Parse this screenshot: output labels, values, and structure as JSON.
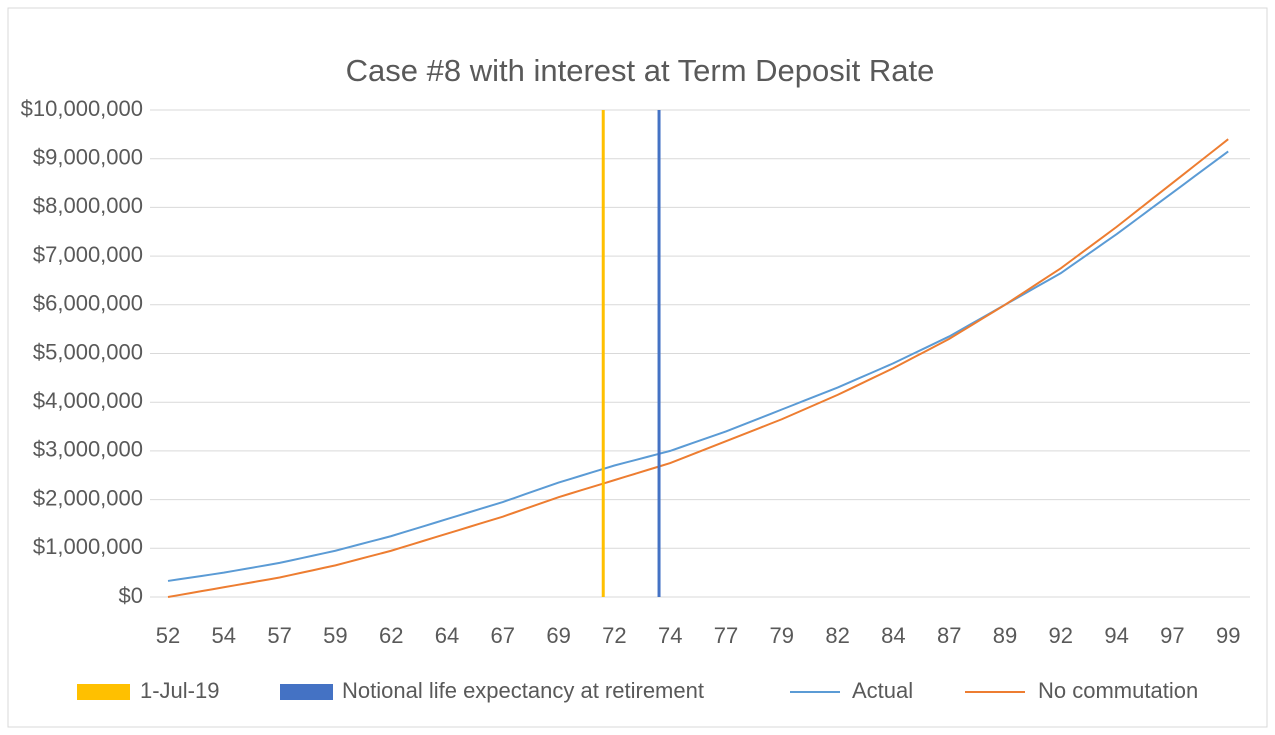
{
  "chart_data": {
    "type": "line",
    "title": "Case #8 with interest at Term Deposit Rate",
    "categories": [
      "52",
      null,
      null,
      null,
      null,
      "54",
      null,
      null,
      null,
      null,
      "57",
      null,
      null,
      null,
      null,
      "59",
      null,
      null,
      null,
      null,
      "62",
      null,
      null,
      null,
      null,
      "64",
      null,
      null,
      null,
      null,
      "67",
      null,
      null,
      null,
      null,
      "69",
      null,
      null,
      null,
      null,
      "72",
      null,
      null,
      null,
      null,
      "74",
      null,
      null,
      null,
      null,
      "77",
      null,
      null,
      null,
      null,
      "79",
      null,
      null,
      null,
      null,
      "82",
      null,
      null,
      null,
      null,
      "84",
      null,
      null,
      null,
      null,
      "87",
      null,
      null,
      null,
      null,
      "89",
      null,
      null,
      null,
      null,
      "92",
      null,
      null,
      null,
      null,
      "94",
      null,
      null,
      null,
      null,
      "97",
      null,
      null,
      null,
      null,
      "99"
    ],
    "series": [
      {
        "name": "Actual",
        "color": "#5b9bd5",
        "values": [
          330000,
          364000,
          398000,
          432000,
          466000,
          500000,
          540000,
          580000,
          620000,
          660000,
          700000,
          750000,
          800000,
          850000,
          900000,
          950000,
          1010000,
          1070000,
          1130000,
          1190000,
          1250000,
          1320000,
          1390000,
          1460000,
          1530000,
          1600000,
          1670000,
          1740000,
          1810000,
          1880000,
          1950000,
          2030000,
          2110000,
          2190000,
          2270000,
          2350000,
          2420000,
          2490000,
          2560000,
          2630000,
          2700000,
          2760000,
          2820000,
          2880000,
          2940000,
          3000000,
          3080000,
          3160000,
          3240000,
          3320000,
          3400000,
          3490000,
          3580000,
          3670000,
          3760000,
          3850000,
          3940000,
          4030000,
          4120000,
          4210000,
          4300000,
          4400000,
          4500000,
          4600000,
          4700000,
          4800000,
          4910000,
          5020000,
          5130000,
          5240000,
          5350000,
          5480000,
          5610000,
          5740000,
          5870000,
          6000000,
          6130000,
          6260000,
          6390000,
          6520000,
          6650000,
          6810000,
          6970000,
          7130000,
          7290000,
          7450000,
          7620000,
          7790000,
          7960000,
          8130000,
          8300000,
          8470000,
          8640000,
          8810000,
          8980000,
          9150000
        ]
      },
      {
        "name": "No commutation",
        "color": "#ed7d31",
        "values": [
          0,
          40000,
          80000,
          120000,
          160000,
          200000,
          240000,
          280000,
          320000,
          360000,
          400000,
          450000,
          500000,
          550000,
          600000,
          650000,
          710000,
          770000,
          830000,
          890000,
          950000,
          1020000,
          1090000,
          1160000,
          1230000,
          1300000,
          1370000,
          1440000,
          1510000,
          1580000,
          1650000,
          1730000,
          1810000,
          1890000,
          1970000,
          2050000,
          2120000,
          2190000,
          2260000,
          2330000,
          2400000,
          2470000,
          2540000,
          2610000,
          2680000,
          2750000,
          2840000,
          2930000,
          3020000,
          3110000,
          3200000,
          3290000,
          3380000,
          3470000,
          3560000,
          3650000,
          3750000,
          3850000,
          3950000,
          4050000,
          4150000,
          4260000,
          4370000,
          4480000,
          4590000,
          4700000,
          4820000,
          4940000,
          5060000,
          5180000,
          5300000,
          5440000,
          5580000,
          5720000,
          5860000,
          6000000,
          6150000,
          6300000,
          6450000,
          6600000,
          6750000,
          6920000,
          7090000,
          7260000,
          7430000,
          7600000,
          7780000,
          7960000,
          8140000,
          8320000,
          8500000,
          8680000,
          8860000,
          9040000,
          9220000,
          9400000
        ]
      }
    ],
    "markers": [
      {
        "name": "1-Jul-19",
        "color": "#ffc000",
        "index": 39
      },
      {
        "name": "Notional life expectancy at retirement",
        "color": "#4472c4",
        "index": 44
      }
    ],
    "ylim": [
      0,
      10000000
    ],
    "yticks": [
      {
        "value": 0,
        "label": "$0"
      },
      {
        "value": 1000000,
        "label": "$1,000,000"
      },
      {
        "value": 2000000,
        "label": "$2,000,000"
      },
      {
        "value": 3000000,
        "label": "$3,000,000"
      },
      {
        "value": 4000000,
        "label": "$4,000,000"
      },
      {
        "value": 5000000,
        "label": "$5,000,000"
      },
      {
        "value": 6000000,
        "label": "$6,000,000"
      },
      {
        "value": 7000000,
        "label": "$7,000,000"
      },
      {
        "value": 8000000,
        "label": "$8,000,000"
      },
      {
        "value": 9000000,
        "label": "$9,000,000"
      },
      {
        "value": 10000000,
        "label": "$10,000,000"
      }
    ],
    "grid": true
  }
}
